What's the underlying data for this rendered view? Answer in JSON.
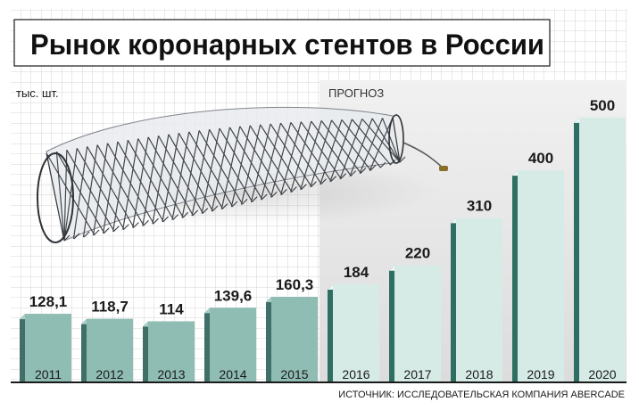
{
  "chart_data": {
    "type": "bar",
    "title": "Рынок коронарных стентов в России",
    "unit_label": "тыс. шт.",
    "forecast_label": "ПРОГНОЗ",
    "source": "ИСТОЧНИК: ИССЛЕДОВАТЕЛЬСКАЯ КОМПАНИЯ ABERCADE",
    "categories": [
      "2011",
      "2012",
      "2013",
      "2014",
      "2015",
      "2016",
      "2017",
      "2018",
      "2019",
      "2020"
    ],
    "values": [
      128.1,
      118.7,
      114,
      139.6,
      160.3,
      184,
      220,
      310,
      400,
      500
    ],
    "value_labels": [
      "128,1",
      "118,7",
      "114",
      "139,6",
      "160,3",
      "184",
      "220",
      "310",
      "400",
      "500"
    ],
    "forecast_from": "2016",
    "ylim": [
      0,
      520
    ],
    "grid": true,
    "colors": {
      "title_box": "#ffffff",
      "title_text": "#111111",
      "grid_line": "#c9c9c9",
      "actual_bar": "#8fbcb3",
      "actual_bar_side": "#3f6f66",
      "forecast_bar": "#d6ebe6",
      "forecast_bar_side": "#2f6e62",
      "forecast_bg": "#e6e6e6",
      "value_text": "#1a1a1a"
    }
  }
}
